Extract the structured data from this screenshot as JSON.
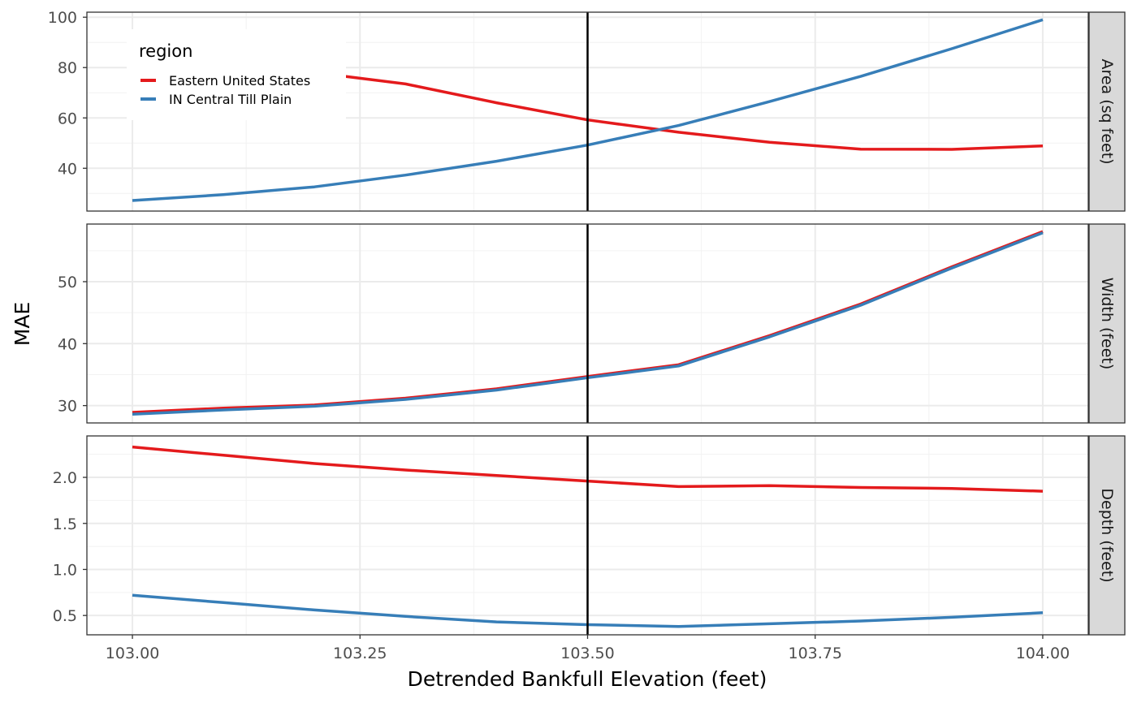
{
  "chart_data": {
    "type": "line",
    "x": [
      103.0,
      103.1,
      103.2,
      103.3,
      103.4,
      103.5,
      103.6,
      103.7,
      103.8,
      103.9,
      104.0
    ],
    "xlabel": "Detrended Bankfull Elevation (feet)",
    "ylabel": "MAE",
    "xlim": [
      102.95,
      104.05
    ],
    "x_ticks": [
      "103.00",
      "103.25",
      "103.50",
      "103.75",
      "104.00"
    ],
    "vline": 103.5,
    "grid": true,
    "legend": {
      "title": "region",
      "position": "top-left",
      "entries": [
        "Eastern United States",
        "IN Central Till Plain"
      ]
    },
    "colors": {
      "Eastern United States": "#e41a1c",
      "IN Central Till Plain": "#377eb8"
    },
    "panels": [
      {
        "facet": "Area (sq feet)",
        "ylim": [
          23,
          102
        ],
        "y_ticks": [
          "40",
          "60",
          "80",
          "100"
        ],
        "series": [
          {
            "name": "Eastern United States",
            "values": [
              null,
              null,
              78,
              73.5,
              66,
              59.2,
              54.3,
              50.3,
              47.6,
              47.5,
              48.9
            ]
          },
          {
            "name": "IN Central Till Plain",
            "values": [
              27.2,
              29.5,
              32.6,
              37.3,
              42.8,
              49.2,
              57.0,
              66.5,
              76.5,
              87.5,
              99.0
            ]
          }
        ]
      },
      {
        "facet": "Width (feet)",
        "ylim": [
          27.2,
          59.3
        ],
        "y_ticks": [
          "30",
          "40",
          "50"
        ],
        "series": [
          {
            "name": "Eastern United States",
            "values": [
              28.9,
              29.6,
              30.1,
              31.2,
              32.7,
              34.7,
              36.6,
              41.3,
              46.4,
              52.4,
              58.1
            ]
          },
          {
            "name": "IN Central Till Plain",
            "values": [
              28.6,
              29.3,
              29.9,
              31.0,
              32.5,
              34.5,
              36.4,
              41.1,
              46.2,
              52.2,
              57.9
            ]
          }
        ]
      },
      {
        "facet": "Depth (feet)",
        "ylim": [
          0.29,
          2.45
        ],
        "y_ticks": [
          "0.5",
          "1.0",
          "1.5",
          "2.0"
        ],
        "series": [
          {
            "name": "Eastern United States",
            "values": [
              2.33,
              2.24,
              2.15,
              2.08,
              2.02,
              1.96,
              1.9,
              1.91,
              1.89,
              1.88,
              1.85
            ]
          },
          {
            "name": "IN Central Till Plain",
            "values": [
              0.72,
              0.64,
              0.56,
              0.49,
              0.43,
              0.4,
              0.38,
              0.41,
              0.44,
              0.48,
              0.53
            ]
          }
        ]
      }
    ]
  }
}
